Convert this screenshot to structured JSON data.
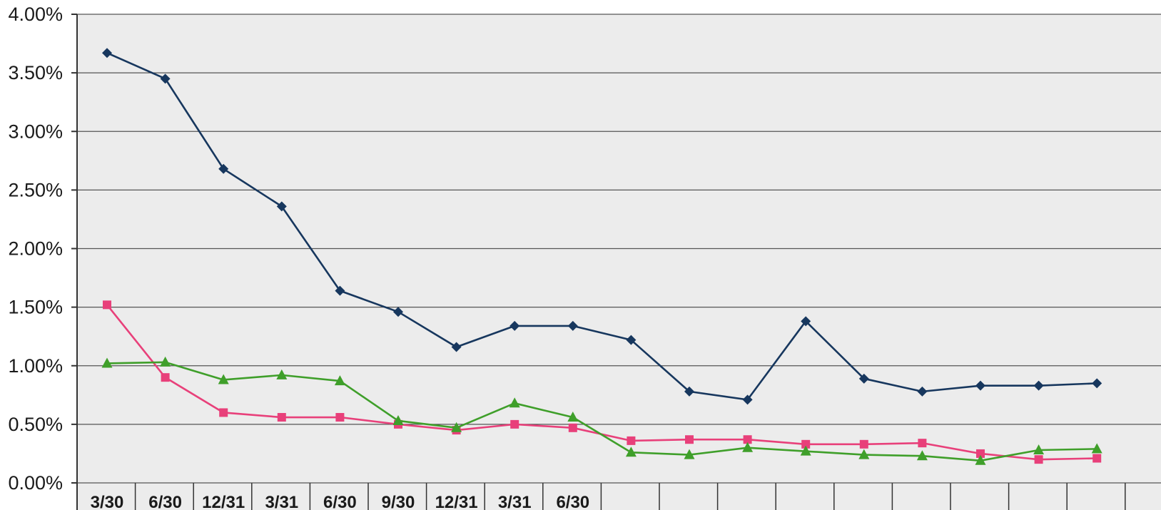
{
  "chart_data": {
    "type": "line",
    "title": "",
    "xlabel": "",
    "ylabel": "",
    "ylim": [
      0,
      0.04
    ],
    "y_tick_labels": [
      "0.00%",
      "0.50%",
      "1.00%",
      "1.50%",
      "2.00%",
      "2.50%",
      "3.00%",
      "3.50%",
      "4.00%"
    ],
    "categories": [
      "3/30",
      "6/30",
      "12/31",
      "3/31",
      "6/30",
      "9/30",
      "12/31",
      "3/31",
      "6/30",
      "",
      "",
      "",
      "",
      "",
      "",
      "",
      "",
      ""
    ],
    "grid": true,
    "legend": "none",
    "series": [
      {
        "color": "#17375e",
        "marker": "diamond",
        "values": [
          0.0367,
          0.0345,
          0.0268,
          0.0236,
          0.0164,
          0.0146,
          0.0116,
          0.0134,
          0.0134,
          0.0122,
          0.0078,
          0.0071,
          0.0138,
          0.0089,
          0.0078,
          0.0083,
          0.0083,
          0.0085
        ]
      },
      {
        "color": "#e8407a",
        "marker": "square",
        "values": [
          0.0152,
          0.009,
          0.006,
          0.0056,
          0.0056,
          0.005,
          0.0045,
          0.005,
          0.0047,
          0.0036,
          0.0037,
          0.0037,
          0.0033,
          0.0033,
          0.0034,
          0.0025,
          0.002,
          0.0021
        ]
      },
      {
        "color": "#3f9f2a",
        "marker": "triangle",
        "values": [
          0.0102,
          0.0103,
          0.0088,
          0.0092,
          0.0087,
          0.0053,
          0.0047,
          0.0068,
          0.0056,
          0.0026,
          0.0024,
          0.003,
          0.0027,
          0.0024,
          0.0023,
          0.0019,
          0.0028,
          0.0029
        ]
      }
    ]
  }
}
